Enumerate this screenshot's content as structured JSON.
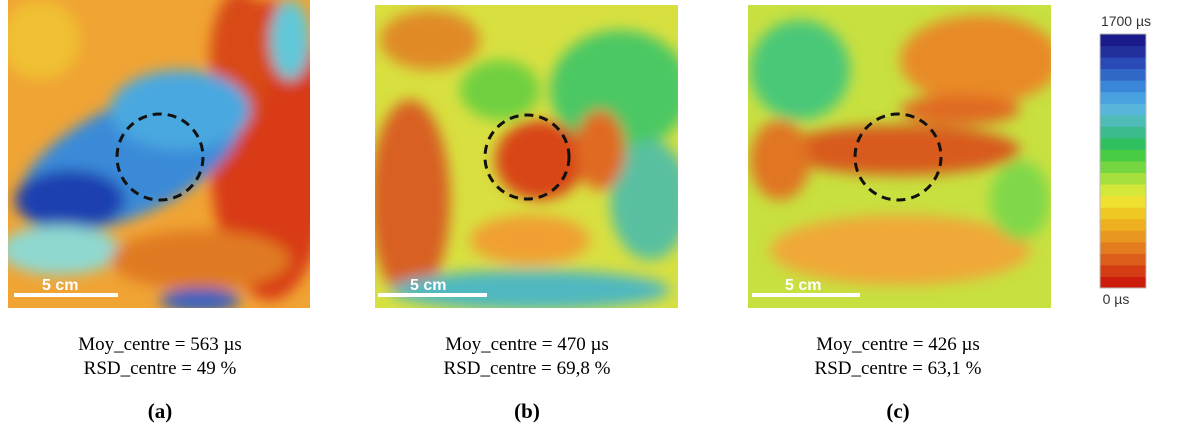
{
  "panels": [
    {
      "scale_label": "5 cm",
      "mean_text": "Moy_centre = 563 µs",
      "rsd_text": "RSD_centre = 49 %",
      "label": "(a)"
    },
    {
      "scale_label": "5 cm",
      "mean_text": "Moy_centre = 470 µs",
      "rsd_text": "RSD_centre = 69,8 %",
      "label": "(b)"
    },
    {
      "scale_label": "5 cm",
      "mean_text": "Moy_centre = 426 µs",
      "rsd_text": "RSD_centre = 63,1 %",
      "label": "(c)"
    }
  ],
  "colorbar": {
    "max_label": "1700 µs",
    "min_label": "0 µs"
  }
}
